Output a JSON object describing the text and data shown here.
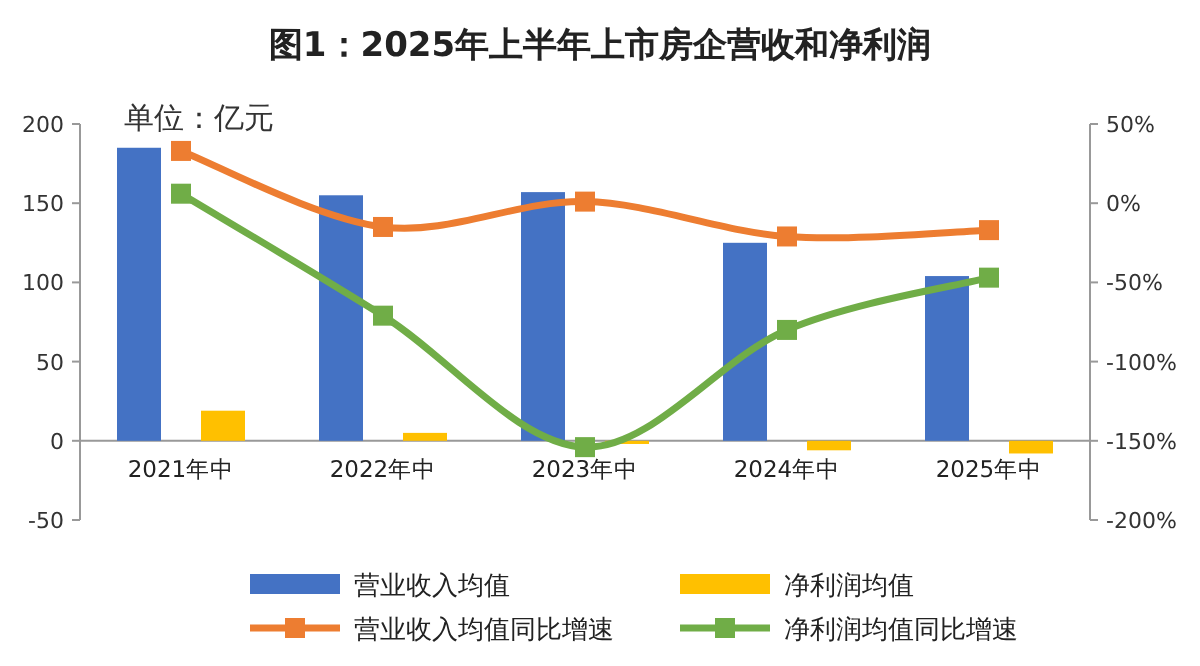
{
  "chart_data": {
    "type": "bar",
    "title": "图1：2025年上半年上市房企营收和净利润",
    "annotations": [
      "单位：亿元"
    ],
    "categories": [
      "2021年中",
      "2022年中",
      "2023年中",
      "2024年中",
      "2025年中"
    ],
    "series": [
      {
        "name": "营业收入均值",
        "color": "#4472c4",
        "values": [
          185,
          155,
          157,
          125,
          104
        ]
      },
      {
        "name": "净利润均值",
        "color": "#ffc000",
        "values": [
          19,
          5,
          -2,
          -6,
          -8
        ]
      },
      {
        "name": "营业收入均值同比增速",
        "type": "line",
        "axis": "y2",
        "color": "#ed7d31",
        "values": [
          33,
          -15,
          1,
          -21,
          -17
        ]
      },
      {
        "name": "净利润均值同比增速",
        "type": "line",
        "axis": "y2",
        "color": "#70ad47",
        "values": [
          6,
          -71,
          -154,
          -80,
          -47
        ]
      }
    ],
    "ylim": [
      -50,
      200
    ],
    "yticks": [
      -50,
      0,
      50,
      100,
      150,
      200
    ],
    "y2lim": [
      -200,
      50
    ],
    "y2ticks": [
      {
        "value": -200,
        "label": "-200%"
      },
      {
        "value": -150,
        "label": "-150%"
      },
      {
        "value": -100,
        "label": "-100%"
      },
      {
        "value": -50,
        "label": "-50%"
      },
      {
        "value": 0,
        "label": "0%"
      },
      {
        "value": 50,
        "label": "50%"
      }
    ],
    "marker": "square",
    "grid": false,
    "legend": "bottom"
  }
}
